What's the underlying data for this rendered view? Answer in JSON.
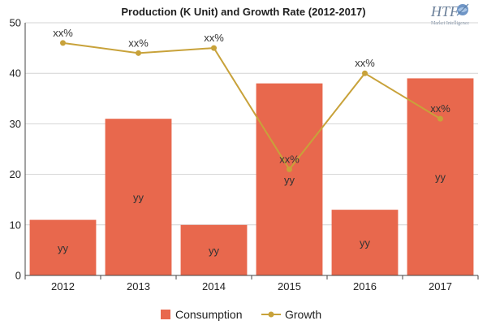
{
  "chart_data": {
    "type": "bar",
    "title": "Production (K Unit) and Growth Rate (2012-2017)",
    "categories": [
      "2012",
      "2013",
      "2014",
      "2015",
      "2016",
      "2017"
    ],
    "series": [
      {
        "name": "Consumption",
        "type": "bar",
        "values": [
          11,
          31,
          10,
          38,
          13,
          39
        ],
        "data_labels": [
          "yy",
          "yy",
          "yy",
          "yy",
          "yy",
          "yy"
        ],
        "color": "#e8684d"
      },
      {
        "name": "Growth",
        "type": "line",
        "values": [
          46,
          44,
          45,
          21,
          40,
          31
        ],
        "data_labels": [
          "xx%",
          "xx%",
          "xx%",
          "xx%",
          "xx%",
          "xx%"
        ],
        "color": "#c8a23a"
      }
    ],
    "ylim": [
      0,
      50
    ],
    "yticks": [
      "0",
      "10",
      "20",
      "30",
      "40",
      "50"
    ],
    "grid": true,
    "legend": "bottom"
  },
  "logo": {
    "text": "HTF",
    "subtext": "Market Intelligence"
  }
}
